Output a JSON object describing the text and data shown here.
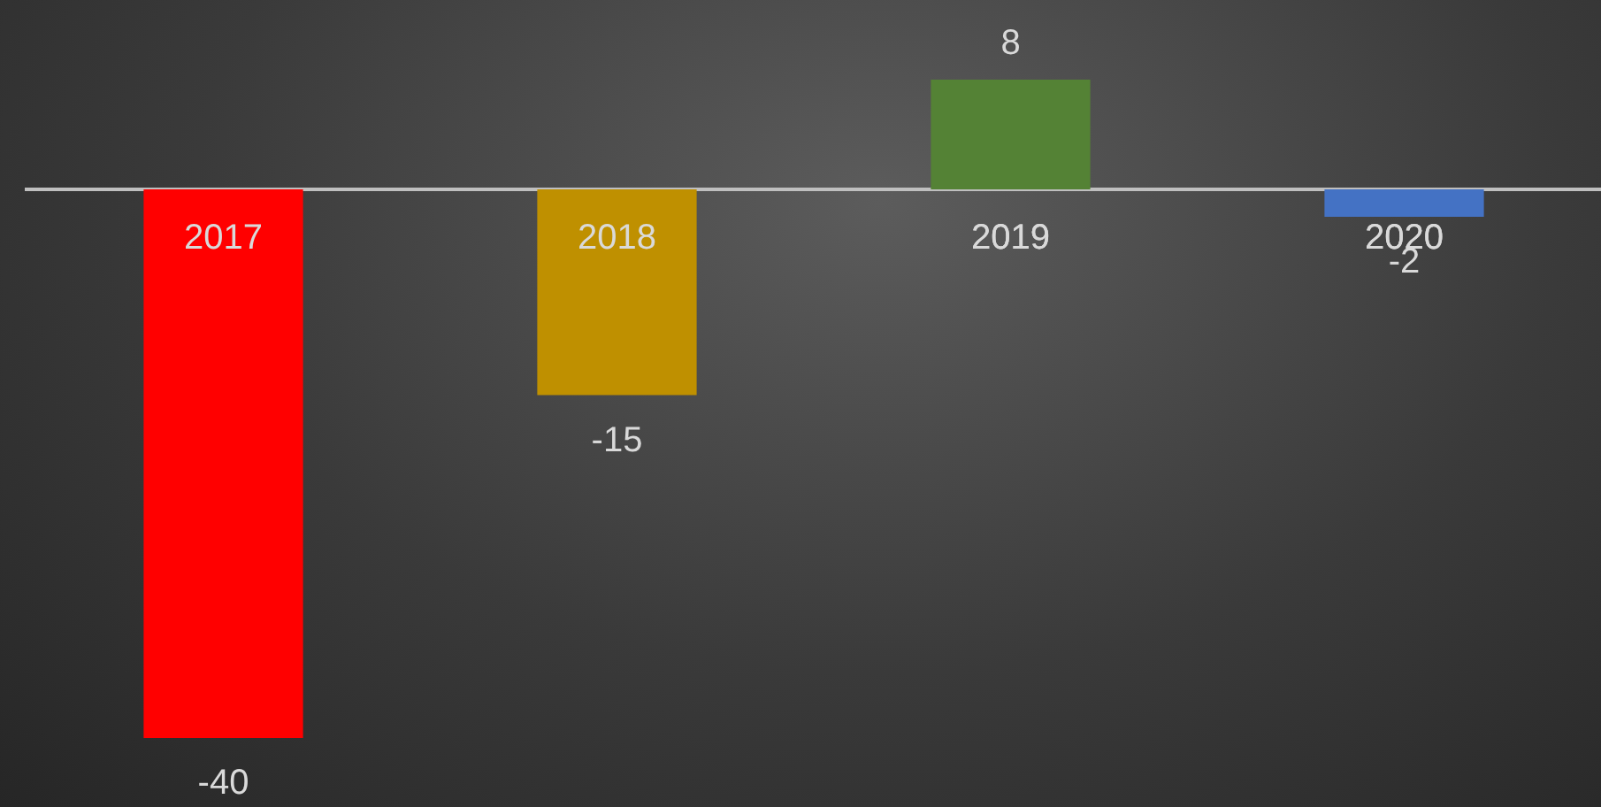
{
  "chart_data": {
    "type": "bar",
    "categories": [
      "2017",
      "2018",
      "2019",
      "2020"
    ],
    "values": [
      -40,
      -15,
      8,
      -2
    ],
    "colors": [
      "#ff0000",
      "#bf9000",
      "#548235",
      "#4472c4"
    ],
    "data_labels": true
  }
}
